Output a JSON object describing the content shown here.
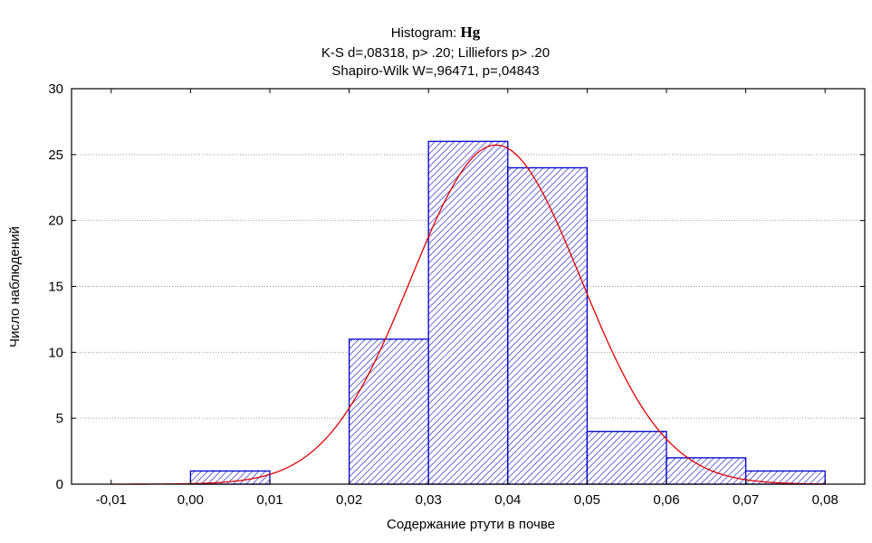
{
  "chart_data": {
    "type": "bar",
    "title_prefix": "Histogram: ",
    "title_variable": "Hg",
    "subtitle1": "K-S d=,08318, p> .20; Lilliefors p> .20",
    "subtitle2": "Shapiro-Wilk W=,96471, p=,04843",
    "xlabel": "Содержание ртути в почве",
    "ylabel": "Число наблюдений",
    "xlim": [
      -0.015,
      0.085
    ],
    "ylim": [
      0,
      30
    ],
    "xticks": [
      "-0,01",
      "0,00",
      "0,01",
      "0,02",
      "0,03",
      "0,04",
      "0,05",
      "0,06",
      "0,07",
      "0,08"
    ],
    "yticks": [
      "0",
      "5",
      "10",
      "15",
      "20",
      "25",
      "30"
    ],
    "bins": [
      {
        "from": 0.0,
        "to": 0.01,
        "count": 1
      },
      {
        "from": 0.01,
        "to": 0.02,
        "count": 0
      },
      {
        "from": 0.02,
        "to": 0.03,
        "count": 11
      },
      {
        "from": 0.03,
        "to": 0.04,
        "count": 26
      },
      {
        "from": 0.04,
        "to": 0.05,
        "count": 24
      },
      {
        "from": 0.05,
        "to": 0.06,
        "count": 4
      },
      {
        "from": 0.06,
        "to": 0.07,
        "count": 2
      },
      {
        "from": 0.07,
        "to": 0.08,
        "count": 1
      }
    ],
    "normal_fit": {
      "mean": 0.0385,
      "sd": 0.0107,
      "n": 69,
      "bin_width": 0.01
    },
    "grid": true,
    "colors": {
      "bar_stroke": "#0000cc",
      "bar_hatch": "#2a2ad0",
      "curve": "#e00000",
      "grid": "#9a9a9a"
    }
  }
}
